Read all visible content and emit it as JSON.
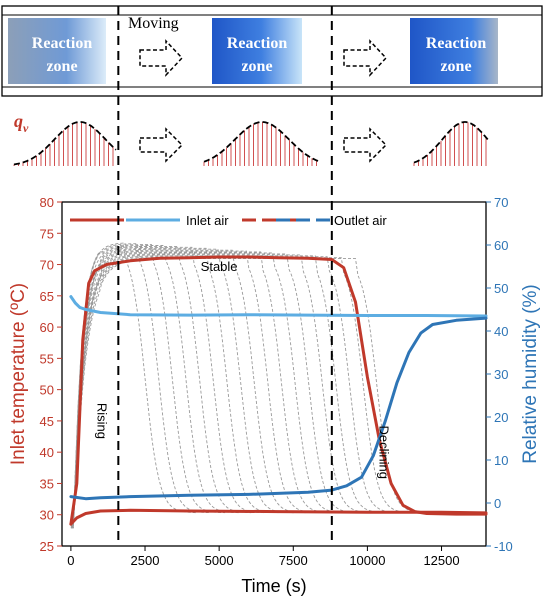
{
  "schematic": {
    "moving_label": "Moving",
    "zone_label_line1": "Reaction",
    "zone_label_line2": "zone",
    "qv_label": "q",
    "qv_subscript": "v"
  },
  "chart_data": {
    "type": "line",
    "title": "",
    "xlabel": "Time (s)",
    "ylabel_left": "Inlet temperature (ºC)",
    "ylabel_right": "Relative humidity (%)",
    "xlim": [
      -300,
      14000
    ],
    "ylim_left": [
      25,
      80
    ],
    "ylim_right": [
      -10,
      70
    ],
    "x_ticks": [
      0,
      2500,
      5000,
      7500,
      10000,
      12500
    ],
    "y_ticks_left": [
      25,
      30,
      35,
      40,
      45,
      50,
      55,
      60,
      65,
      70,
      75,
      80
    ],
    "y_ticks_right": [
      -10,
      0,
      10,
      20,
      30,
      40,
      50,
      60,
      70
    ],
    "grid": false,
    "legend": {
      "placement": "top",
      "entries": [
        {
          "label": "",
          "color": "#c0392b",
          "style": "solid"
        },
        {
          "label": "Inlet air",
          "color": "#5dade2",
          "style": "solid"
        },
        {
          "label": "",
          "color": "#c0392b",
          "style": "dashed"
        },
        {
          "label": "Outlet air",
          "color": "#2e75b6",
          "style": "dashed"
        }
      ]
    },
    "annotations": [
      {
        "text": "Rising",
        "x": 900,
        "y": 45
      },
      {
        "text": "Stable",
        "x": 5000,
        "y": 69
      },
      {
        "text": "Declining",
        "x": 10400,
        "y": 40
      }
    ],
    "vlines": [
      1600,
      8800
    ],
    "series": [
      {
        "name": "Inlet air",
        "axis": "left",
        "color": "#c0392b",
        "x": [
          0,
          200,
          500,
          1000,
          2000,
          4000,
          7000,
          10000,
          12500,
          14000
        ],
        "y": [
          28.5,
          29.5,
          30.2,
          30.6,
          30.7,
          30.6,
          30.5,
          30.4,
          30.4,
          30.3
        ]
      },
      {
        "name": "Outlet air",
        "axis": "left",
        "color": "#c0392b",
        "x": [
          0,
          200,
          400,
          600,
          800,
          1200,
          2000,
          3000,
          4000,
          5000,
          6000,
          7000,
          8000,
          8800,
          9200,
          9600,
          10000,
          10400,
          10800,
          11200,
          11600,
          12000,
          13000,
          14000
        ],
        "y": [
          28.5,
          35,
          58,
          67,
          69,
          70,
          70.6,
          71,
          71.1,
          71.2,
          71.2,
          71.1,
          71,
          70.8,
          69.5,
          64,
          52,
          42,
          35,
          31.5,
          30.5,
          30.2,
          30.1,
          30.1
        ]
      },
      {
        "name": "Inlet air",
        "axis": "right",
        "color": "#5dade2",
        "x": [
          0,
          150,
          300,
          500,
          1000,
          2000,
          4000,
          6000,
          8000,
          10000,
          12000,
          14000
        ],
        "y": [
          48,
          46.5,
          45.5,
          45,
          44.3,
          43.8,
          43.7,
          43.8,
          43.7,
          43.6,
          43.6,
          43.5
        ]
      },
      {
        "name": "Outlet air",
        "axis": "right",
        "color": "#2e75b6",
        "x": [
          0,
          500,
          1000,
          2000,
          4000,
          6000,
          8000,
          8800,
          9300,
          9800,
          10200,
          10600,
          11000,
          11400,
          11800,
          12200,
          13000,
          14000
        ],
        "y": [
          1.5,
          1,
          1.2,
          1.5,
          1.8,
          2,
          2.5,
          3,
          4,
          6,
          11,
          19,
          28,
          35,
          39.5,
          41.5,
          42.5,
          43
        ]
      }
    ]
  }
}
